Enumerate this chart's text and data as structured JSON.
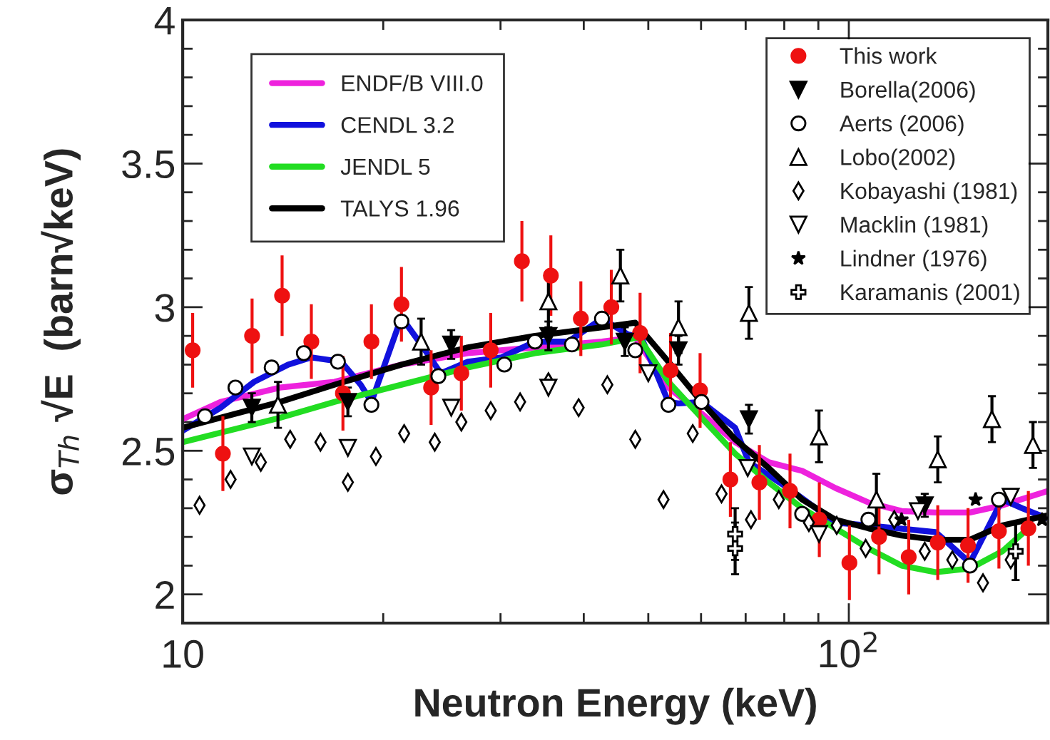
{
  "chart_data": {
    "type": "scatter",
    "xlabel": "Neutron Energy (keV)",
    "ylabel": "σ$_{Th}$ √E  (barn√keV)",
    "log": "x",
    "xlim": [
      10,
      199
    ],
    "xticks": [
      {
        "value": 10,
        "label": "10"
      },
      {
        "value": 100,
        "label": "10$^{2}$"
      }
    ],
    "ylim": [
      1.9,
      4.0
    ],
    "yticks": [
      2,
      2.5,
      3,
      3.5,
      4
    ],
    "legend": "top right",
    "series": [
      {
        "name": "ENDF/B VIII.0",
        "type": "line",
        "color": "#ee22dd",
        "x": [
          10,
          11.4,
          14.0,
          16.9,
          21.3,
          26.8,
          33.8,
          42.6,
          47.8,
          53.6,
          60.1,
          67.5,
          75.8,
          85.1,
          95.5,
          107,
          120,
          135,
          152,
          170,
          199
        ],
        "values": [
          2.61,
          2.67,
          2.72,
          2.74,
          2.8,
          2.84,
          2.86,
          2.88,
          2.895,
          2.72,
          2.63,
          2.53,
          2.46,
          2.43,
          2.37,
          2.32,
          2.29,
          2.285,
          2.285,
          2.31,
          2.36
        ]
      },
      {
        "name": "CENDL 3.2",
        "type": "line",
        "color": "#1111dd",
        "x": [
          10,
          11.4,
          12.8,
          14.4,
          15.6,
          17.3,
          18.5,
          19.2,
          21.3,
          22.8,
          24.4,
          26.8,
          30.1,
          33.8,
          37.9,
          42.6,
          46.6,
          48.8,
          53.6,
          55.5,
          60.1,
          67.5,
          70.8,
          81.1,
          95.5,
          107,
          135,
          152,
          170,
          182,
          199
        ],
        "values": [
          2.57,
          2.65,
          2.74,
          2.8,
          2.825,
          2.81,
          2.73,
          2.67,
          2.965,
          2.87,
          2.77,
          2.81,
          2.825,
          2.88,
          2.88,
          2.96,
          2.905,
          2.895,
          2.67,
          2.665,
          2.67,
          2.58,
          2.46,
          2.37,
          2.25,
          2.24,
          2.217,
          2.11,
          2.33,
          2.3,
          2.264
        ]
      },
      {
        "name": "JENDL 5",
        "type": "line",
        "color": "#22dd22",
        "x": [
          10,
          14.0,
          16.9,
          21.3,
          26.8,
          33.8,
          42.6,
          48.4,
          53.6,
          60.1,
          67.5,
          75.8,
          85.1,
          95.5,
          107,
          120,
          135,
          152,
          170,
          186
        ],
        "values": [
          2.53,
          2.615,
          2.67,
          2.73,
          2.79,
          2.84,
          2.87,
          2.895,
          2.74,
          2.615,
          2.49,
          2.39,
          2.3,
          2.23,
          2.16,
          2.1,
          2.077,
          2.09,
          2.15,
          2.23
        ]
      },
      {
        "name": "TALYS 1.96",
        "type": "line",
        "color": "#000000",
        "x": [
          10,
          14.0,
          16.9,
          21.3,
          26.8,
          33.8,
          42.6,
          47.8,
          53.6,
          60.1,
          67.5,
          75.8,
          85.1,
          95.5,
          107,
          120,
          135,
          152,
          170,
          199
        ],
        "values": [
          2.58,
          2.67,
          2.73,
          2.8,
          2.86,
          2.9,
          2.93,
          2.946,
          2.81,
          2.67,
          2.54,
          2.44,
          2.33,
          2.26,
          2.23,
          2.205,
          2.19,
          2.19,
          2.24,
          2.275
        ]
      },
      {
        "name": "This work",
        "marker": "circle",
        "color": "#ee1111",
        "x": [
          10.35,
          11.49,
          12.71,
          14.1,
          15.6,
          17.4,
          19.2,
          21.3,
          23.6,
          26.2,
          29.0,
          32.3,
          35.7,
          39.6,
          44.0,
          48.6,
          54.0,
          59.8,
          66.4,
          73.4,
          81.6,
          90.3,
          100.2,
          111,
          123,
          136,
          151,
          168,
          186
        ],
        "values": [
          2.85,
          2.49,
          2.9,
          3.04,
          2.88,
          2.7,
          2.88,
          3.01,
          2.72,
          2.77,
          2.85,
          3.16,
          3.11,
          2.96,
          3.0,
          2.91,
          2.78,
          2.71,
          2.4,
          2.39,
          2.36,
          2.26,
          2.11,
          2.2,
          2.13,
          2.18,
          2.17,
          2.22,
          2.23
        ],
        "errors": [
          0.13,
          0.13,
          0.13,
          0.14,
          0.13,
          0.13,
          0.13,
          0.13,
          0.13,
          0.13,
          0.13,
          0.14,
          0.14,
          0.13,
          0.13,
          0.14,
          0.13,
          0.13,
          0.13,
          0.13,
          0.13,
          0.13,
          0.13,
          0.13,
          0.13,
          0.13,
          0.13,
          0.13,
          0.13
        ]
      },
      {
        "name": "Borella(2006)",
        "marker": "triangle",
        "color": "#000000",
        "x": [
          12.7,
          17.7,
          25.3,
          35.4,
          46.1,
          55.5,
          70.8,
          130
        ],
        "values": [
          2.65,
          2.67,
          2.87,
          2.9,
          2.88,
          2.85,
          2.61,
          2.31
        ],
        "errors": [
          0.05,
          0.05,
          0.05,
          0.05,
          0.05,
          0.05,
          0.05,
          0.04
        ]
      },
      {
        "name": "Aerts (2006)",
        "marker": "circle",
        "color": "#000000",
        "x": [
          10.8,
          12.0,
          13.6,
          15.2,
          17.1,
          19.2,
          21.3,
          24.2,
          30.4,
          33.8,
          38.4,
          42.6,
          47.8,
          53.6,
          60.1,
          85.1,
          107,
          152,
          168
        ],
        "values": [
          2.62,
          2.72,
          2.79,
          2.84,
          2.81,
          2.66,
          2.95,
          2.76,
          2.8,
          2.88,
          2.87,
          2.96,
          2.85,
          2.66,
          2.67,
          2.28,
          2.26,
          2.1,
          2.33
        ]
      },
      {
        "name": "Lobo(2002)",
        "marker": "triangle",
        "color": "#000000",
        "x": [
          13.9,
          22.8,
          35.4,
          45.4,
          55.5,
          70.8,
          90.2,
          110,
          136,
          164,
          189
        ],
        "values": [
          2.66,
          2.88,
          3.02,
          3.11,
          2.93,
          2.98,
          2.55,
          2.33,
          2.47,
          2.61,
          2.52
        ],
        "errors": [
          0.08,
          0.08,
          0.09,
          0.09,
          0.09,
          0.09,
          0.09,
          0.09,
          0.08,
          0.08,
          0.08
        ]
      },
      {
        "name": "Kobayashi (1981)",
        "marker": "diamond",
        "color": "#000000",
        "x": [
          10.6,
          11.8,
          13.1,
          14.5,
          16.1,
          17.7,
          19.5,
          21.5,
          23.9,
          26.2,
          29.0,
          32.1,
          35.4,
          39.3,
          43.4,
          47.8,
          52.7,
          58.3,
          64.4,
          71.3,
          78.5,
          87.1,
          95.9,
          106,
          117,
          130,
          143,
          159,
          175
        ],
        "values": [
          2.31,
          2.4,
          2.46,
          2.54,
          2.53,
          2.39,
          2.48,
          2.56,
          2.53,
          2.6,
          2.64,
          2.67,
          2.74,
          2.65,
          2.73,
          2.54,
          2.33,
          2.56,
          2.35,
          2.26,
          2.33,
          2.25,
          2.24,
          2.16,
          2.26,
          2.15,
          2.12,
          2.04,
          2.12
        ]
      },
      {
        "name": "Macklin (1981)",
        "marker": "triangle",
        "color": "#000000",
        "x": [
          12.7,
          17.7,
          25.3,
          35.4,
          50.0,
          70.5,
          90.2,
          127,
          175
        ],
        "values": [
          2.48,
          2.51,
          2.65,
          2.72,
          2.77,
          2.44,
          2.21,
          2.29,
          2.34
        ]
      },
      {
        "name": "Lindner (1976)",
        "marker": "star",
        "color": "#000000",
        "x": [
          120,
          155,
          195
        ],
        "values": [
          2.26,
          2.33,
          2.26
        ]
      },
      {
        "name": "Karamanis (2001)",
        "marker": "cross",
        "color": "#000000",
        "x": [
          67.5,
          67.5,
          178
        ],
        "values": [
          2.21,
          2.16,
          2.15
        ],
        "errors": [
          0.09,
          0.09,
          0.1
        ]
      }
    ]
  }
}
